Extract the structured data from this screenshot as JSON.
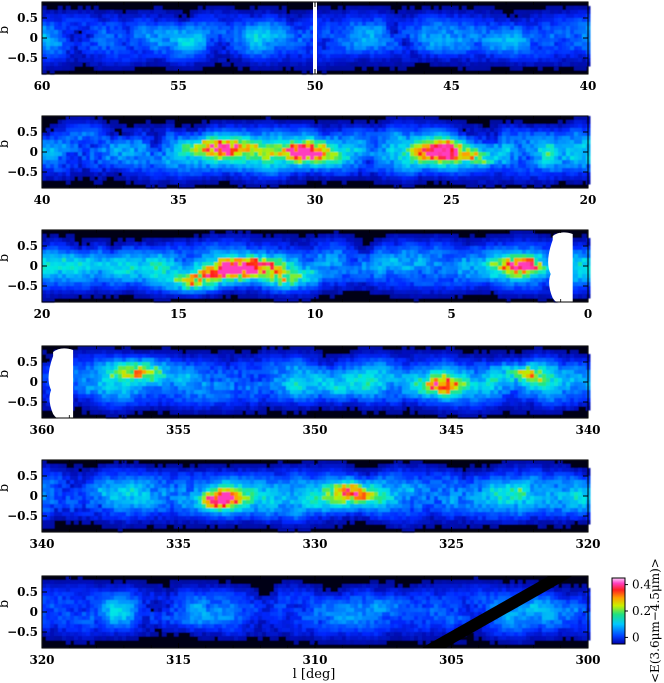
{
  "chart_data": {
    "type": "heatmap",
    "xlabel": "l [deg]",
    "ylabel": "b",
    "colorbar": {
      "label": "<E(3.6μm−4.5μm)>",
      "ticks": [
        "0",
        "0.2",
        "0.4"
      ],
      "range": [
        -0.05,
        0.45
      ]
    },
    "ylim": [
      -0.9,
      0.9
    ],
    "yticks": [
      -0.5,
      0,
      0.5
    ],
    "ytick_labels": [
      "−0.5",
      "0",
      "0.5"
    ],
    "panels": [
      {
        "l_range": [
          60,
          40
        ],
        "xtick_labels": [
          "60",
          "55",
          "50",
          "45",
          "40"
        ],
        "features": [
          {
            "type": "gap",
            "l": 50,
            "shape": "vertical-line"
          }
        ]
      },
      {
        "l_range": [
          40,
          20
        ],
        "xtick_labels": [
          "40",
          "35",
          "30",
          "25",
          "20"
        ],
        "hotspots": [
          {
            "l": 33.5,
            "b": 0.1,
            "level": 0.3
          },
          {
            "l": 30.5,
            "b": 0.0,
            "level": 0.35
          },
          {
            "l": 25.5,
            "b": 0.05,
            "level": 0.3
          },
          {
            "l": 24.0,
            "b": -0.1,
            "level": 0.28
          }
        ]
      },
      {
        "l_range": [
          20,
          0
        ],
        "xtick_labels": [
          "20",
          "15",
          "10",
          "5",
          "0"
        ],
        "hotspots": [
          {
            "l": 14.5,
            "b": -0.4,
            "level": 0.35
          },
          {
            "l": 13.0,
            "b": -0.1,
            "level": 0.4
          },
          {
            "l": 12.0,
            "b": 0.0,
            "level": 0.35
          },
          {
            "l": 11.0,
            "b": -0.3,
            "level": 0.3
          },
          {
            "l": 2.5,
            "b": 0.0,
            "level": 0.38
          }
        ],
        "features": [
          {
            "type": "masked",
            "l": 1.0,
            "shape": "white-blob"
          }
        ]
      },
      {
        "l_range": [
          360,
          340
        ],
        "xtick_labels": [
          "360",
          "355",
          "350",
          "345",
          "340"
        ],
        "hotspots": [
          {
            "l": 356.5,
            "b": 0.3,
            "level": 0.3
          },
          {
            "l": 345.5,
            "b": -0.1,
            "level": 0.3
          },
          {
            "l": 342.5,
            "b": 0.2,
            "level": 0.28
          }
        ],
        "features": [
          {
            "type": "masked",
            "l": 359.3,
            "shape": "white-blob"
          }
        ]
      },
      {
        "l_range": [
          340,
          320
        ],
        "xtick_labels": [
          "340",
          "335",
          "330",
          "325",
          "320"
        ],
        "hotspots": [
          {
            "l": 333.5,
            "b": -0.1,
            "level": 0.28
          },
          {
            "l": 328.5,
            "b": 0.1,
            "level": 0.3
          }
        ]
      },
      {
        "l_range": [
          320,
          300
        ],
        "xtick_labels": [
          "320",
          "315",
          "310",
          "305",
          "300"
        ],
        "features": [
          {
            "type": "gap",
            "shape": "diagonal-stripe",
            "l_from": 305,
            "l_to": 301
          }
        ]
      }
    ]
  }
}
